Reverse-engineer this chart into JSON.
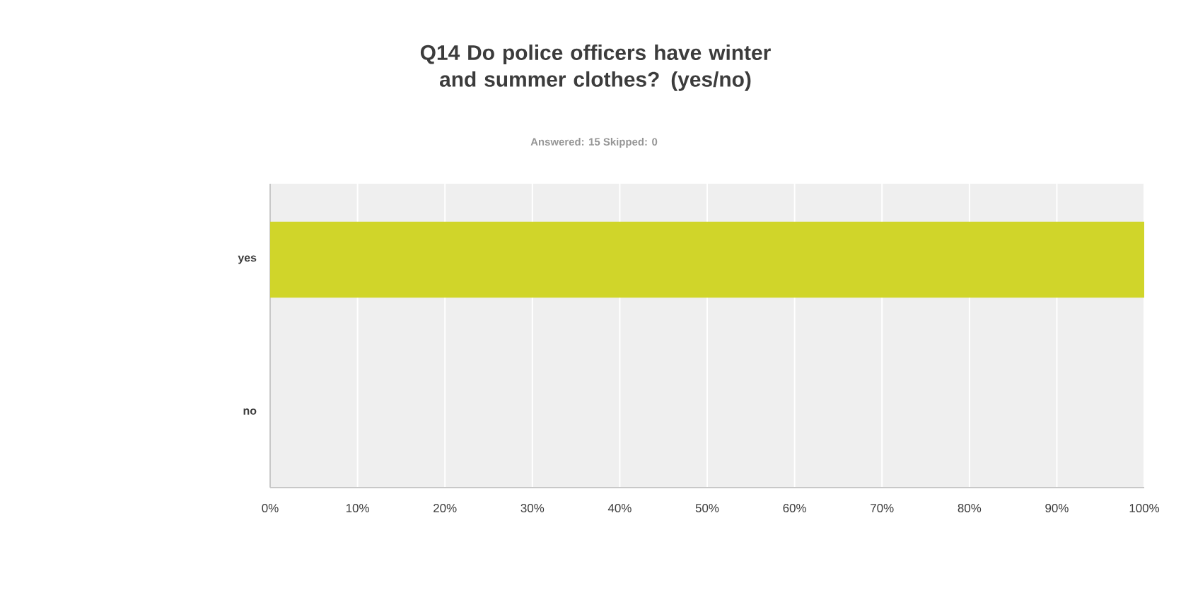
{
  "chart_data": {
    "type": "bar",
    "orientation": "horizontal",
    "title": "Q14 Do police officers have winter and summer clothes? (yes/no)",
    "subtitle": "Answered: 15    Skipped: 0",
    "categories": [
      "yes",
      "no"
    ],
    "values": [
      100,
      0
    ],
    "color": "#d0d52a",
    "xlim": [
      0,
      100
    ],
    "xticks": [
      {
        "value": 0,
        "label": "0%"
      },
      {
        "value": 10,
        "label": "10%"
      },
      {
        "value": 20,
        "label": "20%"
      },
      {
        "value": 30,
        "label": "30%"
      },
      {
        "value": 40,
        "label": "40%"
      },
      {
        "value": 50,
        "label": "50%"
      },
      {
        "value": 60,
        "label": "60%"
      },
      {
        "value": 70,
        "label": "70%"
      },
      {
        "value": 80,
        "label": "80%"
      },
      {
        "value": 90,
        "label": "90%"
      },
      {
        "value": 100,
        "label": "100%"
      }
    ],
    "grid": "x",
    "legend": false
  }
}
